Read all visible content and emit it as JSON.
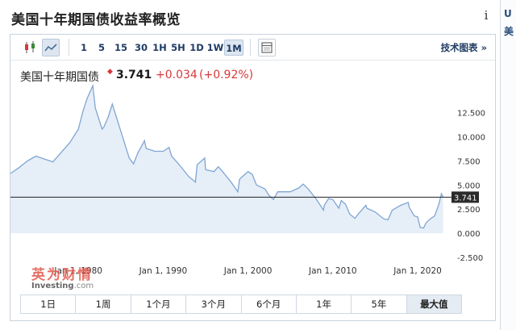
{
  "page": {
    "title": "美国十年期国债收益率概览"
  },
  "side_strip": [
    "U",
    "美"
  ],
  "toolbar": {
    "chart_types": [
      {
        "name": "candlestick-icon",
        "active": false
      },
      {
        "name": "line-chart-icon",
        "active": true
      }
    ],
    "periods": [
      {
        "label": "1",
        "active": false
      },
      {
        "label": "5",
        "active": false
      },
      {
        "label": "15",
        "active": false
      },
      {
        "label": "30",
        "active": false
      },
      {
        "label": "1H",
        "active": false
      },
      {
        "label": "5H",
        "active": false
      },
      {
        "label": "1D",
        "active": false
      },
      {
        "label": "1W",
        "active": false
      },
      {
        "label": "1M",
        "active": true
      }
    ],
    "settings_icon": "window-icon",
    "tech_chart_label": "技术图表 »"
  },
  "quote": {
    "name": "美国十年期国债",
    "price": "3.741",
    "change": "+0.034",
    "change_pct": "(+0.92%)",
    "up_color": "#d9383a"
  },
  "range_tabs": [
    {
      "label": "1日",
      "active": false
    },
    {
      "label": "1周",
      "active": false
    },
    {
      "label": "1个月",
      "active": false
    },
    {
      "label": "3个月",
      "active": false
    },
    {
      "label": "6个月",
      "active": false
    },
    {
      "label": "1年",
      "active": false
    },
    {
      "label": "5年",
      "active": false
    },
    {
      "label": "最大值",
      "active": true
    }
  ],
  "watermark": {
    "logo": "英为财情",
    "sub_brand": "Investing",
    "sub_domain": ".com"
  },
  "chart_data": {
    "type": "area",
    "title": "",
    "xlabel": "",
    "ylabel": "",
    "x_ticks": [
      "Jan 1, 1980",
      "Jan 1, 1990",
      "Jan 1, 2000",
      "Jan 1, 2010",
      "Jan 1, 2020"
    ],
    "x_tick_years": [
      1980,
      1990,
      2000,
      2010,
      2020
    ],
    "y_ticks": [
      "12.500",
      "10.000",
      "7.500",
      "5.000",
      "2.500",
      "0.000",
      "-2.500"
    ],
    "y_tick_values": [
      12.5,
      10,
      7.5,
      5,
      2.5,
      0,
      -2.5
    ],
    "xlim": [
      1972,
      2023.8
    ],
    "ylim": [
      -2.5,
      15.4
    ],
    "current_value": 3.741,
    "current_label": "3.741",
    "line_color": "#7fa6d2",
    "fill_color": "#e6eef8",
    "series": [
      {
        "x": [
          1972,
          1973,
          1974,
          1975,
          1976,
          1977,
          1978,
          1979,
          1980,
          1980.5,
          1981,
          1981.7,
          1982,
          1982.8,
          1983,
          1983.5,
          1984,
          1984.5,
          1985,
          1986,
          1986.5,
          1987,
          1987.8,
          1988,
          1989,
          1990,
          1990.7,
          1991,
          1992,
          1993,
          1993.8,
          1994,
          1994.9,
          1995,
          1996,
          1996.5,
          1997,
          1998,
          1998.8,
          1999,
          2000,
          2000.5,
          2001,
          2002,
          2002.5,
          2003,
          2003.5,
          2004,
          2005,
          2006,
          2006.5,
          2007,
          2008,
          2008.9,
          2009,
          2009.5,
          2010,
          2010.7,
          2011,
          2011.5,
          2012,
          2012.6,
          2013,
          2013.9,
          2014,
          2015,
          2016,
          2016.5,
          2017,
          2018,
          2018.9,
          2019,
          2019.6,
          2020,
          2020.3,
          2020.7,
          2021,
          2021.5,
          2022,
          2022.5,
          2022.8,
          2023
        ],
        "values": [
          6.2,
          6.8,
          7.5,
          8.0,
          7.7,
          7.4,
          8.4,
          9.4,
          10.8,
          12.5,
          13.9,
          15.3,
          13.0,
          10.8,
          11.0,
          12.0,
          13.4,
          12.0,
          10.6,
          7.8,
          7.2,
          8.3,
          9.6,
          8.8,
          8.5,
          8.5,
          8.9,
          8.0,
          7.0,
          5.9,
          5.3,
          7.1,
          7.8,
          6.6,
          6.4,
          6.9,
          6.4,
          5.3,
          4.3,
          5.6,
          6.4,
          6.1,
          5.0,
          4.6,
          3.9,
          3.5,
          4.3,
          4.3,
          4.3,
          4.7,
          5.1,
          4.7,
          3.6,
          2.4,
          2.9,
          3.6,
          3.5,
          2.6,
          3.4,
          3.0,
          2.0,
          1.55,
          2.0,
          2.9,
          2.6,
          2.2,
          1.5,
          1.4,
          2.4,
          2.9,
          3.2,
          2.7,
          1.8,
          1.7,
          0.6,
          0.55,
          1.1,
          1.5,
          1.8,
          3.0,
          4.1,
          3.741
        ]
      }
    ]
  }
}
